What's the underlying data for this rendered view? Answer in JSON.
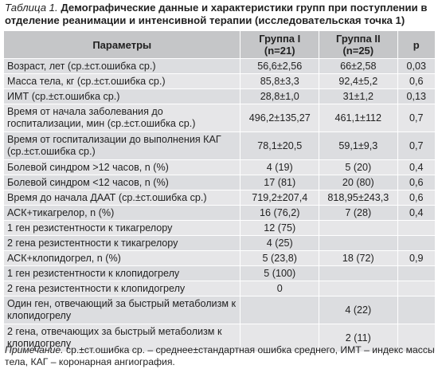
{
  "caption": {
    "lead": "Таблица 1.",
    "title": "Демографические данные и характеристики групп при поступлении в отделение реанимации и интенсивной терапии (исследовательская точка 1)"
  },
  "table": {
    "headers": {
      "param": "Параметры",
      "g1_line1": "Группа I",
      "g1_line2": "(n=21)",
      "g2_line1": "Группа II",
      "g2_line2": "(n=25)",
      "p": "p"
    },
    "rows": [
      {
        "param": "Возраст, лет (ср.±ст.ошибка ср.)",
        "g1": "56,6±2,56",
        "g2": "66±2,58",
        "p": "0,03"
      },
      {
        "param": "Масса тела, кг (ср.±ст.ошибка ср.)",
        "g1": "85,8±3,3",
        "g2": "92,4±5,2",
        "p": "0,6"
      },
      {
        "param": "ИМТ (ср.±ст.ошибка ср.)",
        "g1": "28,8±1,0",
        "g2": "31±1,2",
        "p": "0,13"
      },
      {
        "param": "Время от начала заболевания до госпитализации, мин (ср.±ст.ошибка ср.)",
        "g1": "496,2±135,27",
        "g2": "461,1±112",
        "p": "0,7"
      },
      {
        "param": "Время от госпитализации до выполнения КАГ (ср.±ст.ошибка ср.)",
        "g1": "78,1±20,5",
        "g2": "59,1±9,3",
        "p": "0,7"
      },
      {
        "param": "Болевой синдром >12 часов, n (%)",
        "g1": "4 (19)",
        "g2": "5 (20)",
        "p": "0,4"
      },
      {
        "param": "Болевой синдром <12 часов, n (%)",
        "g1": "17 (81)",
        "g2": "20 (80)",
        "p": "0,6"
      },
      {
        "param": "Время до начала ДААТ (ср.±ст.ошибка ср.)",
        "g1": "719,2±207,4",
        "g2": "818,95±243,3",
        "p": "0,6"
      },
      {
        "param": "АСК+тикагрелор, n (%)",
        "g1": "16 (76,2)",
        "g2": "7 (28)",
        "p": "0,4"
      },
      {
        "param": "1 ген резистентности к тикагрелору",
        "g1": "12 (75)",
        "g2": "",
        "p": ""
      },
      {
        "param": "2 гена резистентности к тикагрелору",
        "g1": "4 (25)",
        "g2": "",
        "p": ""
      },
      {
        "param": "АСК+клопидогрел, n (%)",
        "g1": "5 (23,8)",
        "g2": "18 (72)",
        "p": "0,9"
      },
      {
        "param": "1 ген резистентности к клопидогрелу",
        "g1": "5 (100)",
        "g2": "",
        "p": ""
      },
      {
        "param": "2 гена резистентности к клопидогрелу",
        "g1": "0",
        "g2": "",
        "p": ""
      },
      {
        "param": "Один ген, отвечающий за быстрый метаболизм к клопидогрелу",
        "g1": "",
        "g2": "4 (22)",
        "p": ""
      },
      {
        "param": "2 гена, отвечающих за быстрый метаболизм к клопидогрелу",
        "g1": "",
        "g2": "2 (11)",
        "p": ""
      }
    ]
  },
  "note": {
    "lead": "Примечание.",
    "text": "ср.±ст.ошибка ср. – среднее±стандартная ошибка среднего, ИМТ – индекс массы тела, КАГ – коронарная ангиография."
  }
}
